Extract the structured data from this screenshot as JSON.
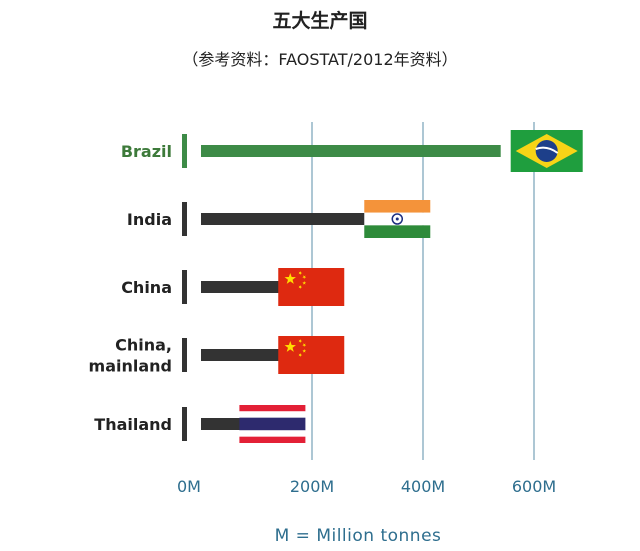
{
  "title": "五大生产国",
  "subtitle": "（参考资料：FAOSTAT/2012年资料）",
  "unit_note": "M = Million tonnes",
  "colors": {
    "highlight_bar": "#3d8b47",
    "highlight_label": "#3d7a3a",
    "bar": "#333333",
    "gridline": "#5b8fa8",
    "tick_text": "#2e6e8e"
  },
  "chart_data": {
    "type": "bar",
    "orientation": "horizontal",
    "title": "五大生产国",
    "subtitle": "（参考资料：FAOSTAT/2012年资料）",
    "categories": [
      "Brazil",
      "India",
      "China",
      "China, mainland",
      "Thailand"
    ],
    "category_lines": [
      [
        "Brazil"
      ],
      [
        "India"
      ],
      [
        "China"
      ],
      [
        "China,",
        "mainland"
      ],
      [
        "Thailand"
      ]
    ],
    "values": [
      540,
      305,
      150,
      150,
      80
    ],
    "highlight": "Brazil",
    "flags": [
      "brazil-flag",
      "india-flag",
      "china-flag",
      "china-flag",
      "thailand-flag"
    ],
    "xlim": [
      0,
      640
    ],
    "xticks": [
      0,
      200,
      400,
      600
    ],
    "xtick_labels": [
      "0M",
      "200M",
      "400M",
      "600M"
    ],
    "grid": true,
    "unit_note": "M = Million tonnes"
  }
}
